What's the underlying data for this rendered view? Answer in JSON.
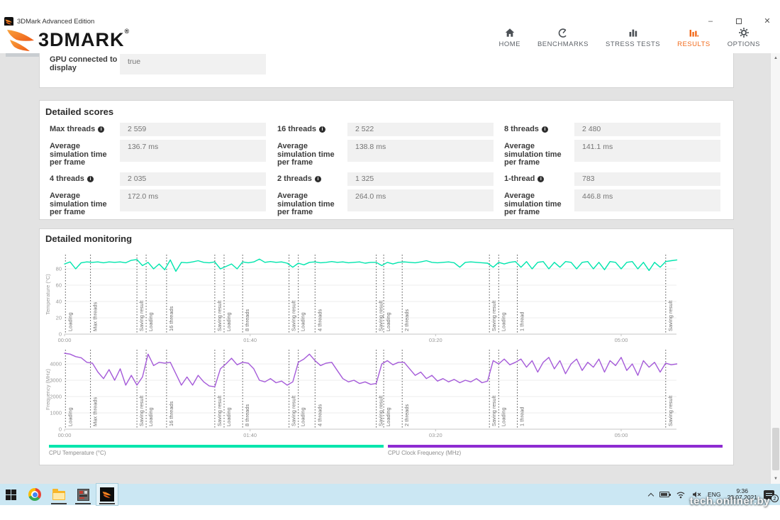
{
  "window": {
    "title": "3DMark Advanced Edition",
    "minimize": "–",
    "close": "✕"
  },
  "header": {
    "brand": "3DMARK",
    "brand_mark": "®",
    "nav": [
      {
        "label": "HOME"
      },
      {
        "label": "BENCHMARKS"
      },
      {
        "label": "STRESS TESTS"
      },
      {
        "label": "RESULTS"
      },
      {
        "label": "OPTIONS"
      }
    ]
  },
  "system_info": {
    "gpu_connected_label": "GPU connected to display",
    "gpu_connected_value": "true"
  },
  "detailed_scores": {
    "title": "Detailed scores",
    "avg_label": "Average simulation time per frame",
    "items": [
      {
        "label": "Max threads",
        "score": "2 559",
        "avg": "136.7 ms"
      },
      {
        "label": "16 threads",
        "score": "2 522",
        "avg": "138.8 ms"
      },
      {
        "label": "8 threads",
        "score": "2 480",
        "avg": "141.1 ms"
      },
      {
        "label": "4 threads",
        "score": "2 035",
        "avg": "172.0 ms"
      },
      {
        "label": "2 threads",
        "score": "1 325",
        "avg": "264.0 ms"
      },
      {
        "label": "1-thread",
        "score": "783",
        "avg": "446.8 ms"
      }
    ]
  },
  "monitoring": {
    "title": "Detailed monitoring"
  },
  "chart_data": {
    "type": "line",
    "time_step_s": 3,
    "x_ticks": [
      {
        "t": 0,
        "label": "00:00"
      },
      {
        "t": 100,
        "label": "01:40"
      },
      {
        "t": 200,
        "label": "03:20"
      },
      {
        "t": 300,
        "label": "05:00"
      }
    ],
    "phases": [
      {
        "t": 0.5,
        "label": "Loading"
      },
      {
        "t": 14,
        "label": "Max threads"
      },
      {
        "t": 39,
        "label": "Saving result"
      },
      {
        "t": 44,
        "label": "Loading"
      },
      {
        "t": 55,
        "label": "16 threads"
      },
      {
        "t": 81,
        "label": "Saving result"
      },
      {
        "t": 86,
        "label": "Loading"
      },
      {
        "t": 96,
        "label": "8 threads"
      },
      {
        "t": 121,
        "label": "Saving result"
      },
      {
        "t": 126,
        "label": "Loading"
      },
      {
        "t": 135,
        "label": "4 threads"
      },
      {
        "t": 168,
        "label": "Saving result"
      },
      {
        "t": 172,
        "label": "Loading"
      },
      {
        "t": 182,
        "label": "2 threads"
      },
      {
        "t": 229,
        "label": "Saving result"
      },
      {
        "t": 234,
        "label": "Loading"
      },
      {
        "t": 244,
        "label": "1 thread"
      },
      {
        "t": 324,
        "label": "Saving result"
      }
    ],
    "charts": [
      {
        "name": "CPU Temperature (°C)",
        "ylabel": "Temperature (°C)",
        "color": "#00e5ad",
        "legend_color": "#00e5ad",
        "yticks": [
          0,
          20,
          40,
          60,
          80
        ],
        "ylim": [
          0,
          96
        ],
        "values": [
          86,
          88.5,
          80,
          87.5,
          88.5,
          88,
          88.5,
          87.5,
          88.5,
          88,
          88.5,
          87.5,
          90.5,
          91.5,
          84,
          88,
          80,
          86,
          79,
          91,
          77,
          88,
          87.5,
          88.5,
          90,
          88,
          87.5,
          88.5,
          80,
          83,
          86,
          80,
          88.5,
          87.5,
          88.5,
          92,
          88,
          89,
          88,
          88.5,
          87,
          82,
          87,
          85,
          88,
          88.5,
          87.5,
          88,
          89,
          88,
          88.5,
          87.5,
          88,
          88.5,
          87,
          88,
          88,
          84,
          88,
          86,
          88,
          88.5,
          88,
          87.5,
          88.5,
          90,
          88,
          87.5,
          88,
          88.5,
          87.5,
          82,
          88,
          88.5,
          88,
          87.5,
          87,
          82,
          88,
          86,
          88,
          89,
          82,
          89,
          80,
          88,
          89,
          80,
          88,
          82,
          89,
          88,
          80,
          88,
          89,
          80,
          88,
          79,
          89,
          88,
          80,
          88,
          89,
          80,
          88,
          78,
          88,
          82,
          89,
          90,
          91
        ]
      },
      {
        "name": "CPU Clock Frequency (MHz)",
        "ylabel": "Frequency (MHz)",
        "color": "#a55bd9",
        "legend_color": "#8e2bd1",
        "yticks": [
          0,
          1000,
          2000,
          3000,
          4000
        ],
        "ylim": [
          0,
          4800
        ],
        "values": [
          4650,
          4600,
          4450,
          4380,
          4100,
          4050,
          3500,
          3100,
          3650,
          3000,
          3700,
          2700,
          3300,
          2700,
          3200,
          4600,
          3900,
          4100,
          4050,
          4100,
          3400,
          2700,
          3200,
          2700,
          3300,
          2900,
          2650,
          2600,
          3700,
          4000,
          4350,
          3950,
          4100,
          4050,
          3700,
          3000,
          2900,
          3100,
          2850,
          2950,
          2700,
          2900,
          4100,
          4300,
          4600,
          4200,
          3900,
          4050,
          4100,
          3600,
          3100,
          2900,
          3000,
          2800,
          2900,
          2750,
          2800,
          4000,
          4200,
          3950,
          4100,
          4100,
          3700,
          3300,
          3500,
          3100,
          3300,
          2950,
          3100,
          2900,
          3050,
          2850,
          3000,
          2900,
          3100,
          2850,
          2950,
          4200,
          4000,
          4300,
          3950,
          4100,
          4300,
          3800,
          4200,
          3500,
          4100,
          4400,
          3700,
          4200,
          3400,
          4000,
          4300,
          3600,
          4100,
          3800,
          4300,
          3500,
          4200,
          3900,
          4400,
          3600,
          4000,
          3300,
          4200,
          3800,
          4100,
          3500,
          4050,
          3950,
          4000
        ]
      }
    ]
  },
  "taskbar": {
    "language": "ENG",
    "time": "9:36",
    "date": "28.07.2021",
    "notification_count": "2"
  },
  "watermark": "tech.onliner.by"
}
